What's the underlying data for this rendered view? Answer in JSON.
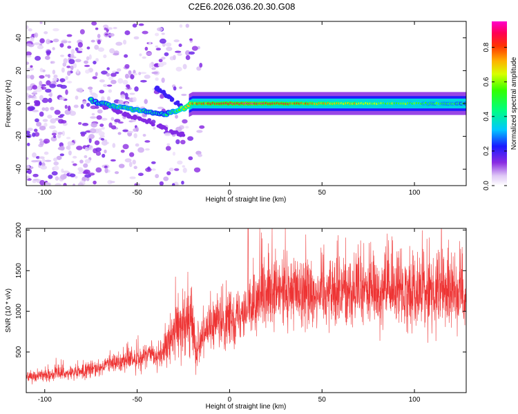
{
  "title": "C2E6.2026.036.20.30.G08",
  "chart_data": [
    {
      "type": "heatmap",
      "title": "C2E6.2026.036.20.30.G08",
      "xlabel": "Height of straight line (km)",
      "ylabel": "Frequency (Hz)",
      "xlim": [
        -110,
        128
      ],
      "ylim": [
        -50,
        50
      ],
      "xticks": [
        -100,
        -50,
        0,
        50,
        100
      ],
      "yticks": [
        -40,
        -20,
        0,
        20,
        40
      ],
      "colorbar": {
        "label": "Normalized spectral amplitude",
        "range": [
          0,
          0.95
        ],
        "ticks": [
          0.0,
          0.2,
          0.4,
          0.6,
          0.8
        ],
        "tick_labels": [
          "0.0",
          "0.2",
          "0.4",
          "0.6",
          "0.8"
        ]
      },
      "ridge": [
        {
          "x": -75,
          "y": 2,
          "a": 0.4
        },
        {
          "x": -65,
          "y": -1,
          "a": 0.45
        },
        {
          "x": -55,
          "y": -3,
          "a": 0.5
        },
        {
          "x": -45,
          "y": -5,
          "a": 0.45
        },
        {
          "x": -35,
          "y": -7,
          "a": 0.4
        },
        {
          "x": -25,
          "y": -3,
          "a": 0.6
        },
        {
          "x": -20,
          "y": 0,
          "a": 0.8
        },
        {
          "x": 0,
          "y": 0,
          "a": 0.9
        },
        {
          "x": 20,
          "y": 0,
          "a": 0.85
        },
        {
          "x": 50,
          "y": 0,
          "a": 0.75
        },
        {
          "x": 100,
          "y": 0,
          "a": 0.55
        },
        {
          "x": 128,
          "y": 0,
          "a": 0.45
        }
      ]
    },
    {
      "type": "line",
      "xlabel": "Height of straight line (km)",
      "ylabel": "SNR (10 * v/v)",
      "xlim": [
        -110,
        128
      ],
      "ylim": [
        0,
        2020
      ],
      "xticks": [
        -100,
        -50,
        0,
        50,
        100
      ],
      "yticks": [
        500,
        1000,
        1500,
        2000
      ],
      "color": "#ee3333",
      "mean_profile": [
        {
          "x": -110,
          "y": 200
        },
        {
          "x": -80,
          "y": 250
        },
        {
          "x": -60,
          "y": 380
        },
        {
          "x": -40,
          "y": 450
        },
        {
          "x": -34,
          "y": 520
        },
        {
          "x": -30,
          "y": 800
        },
        {
          "x": -20,
          "y": 850
        },
        {
          "x": -18,
          "y": 500
        },
        {
          "x": -15,
          "y": 750
        },
        {
          "x": 0,
          "y": 900
        },
        {
          "x": 10,
          "y": 1050
        },
        {
          "x": 20,
          "y": 1150
        },
        {
          "x": 30,
          "y": 1250
        },
        {
          "x": 60,
          "y": 1250
        },
        {
          "x": 128,
          "y": 1250
        }
      ],
      "spike": {
        "x": 10,
        "y": 2020
      }
    }
  ]
}
